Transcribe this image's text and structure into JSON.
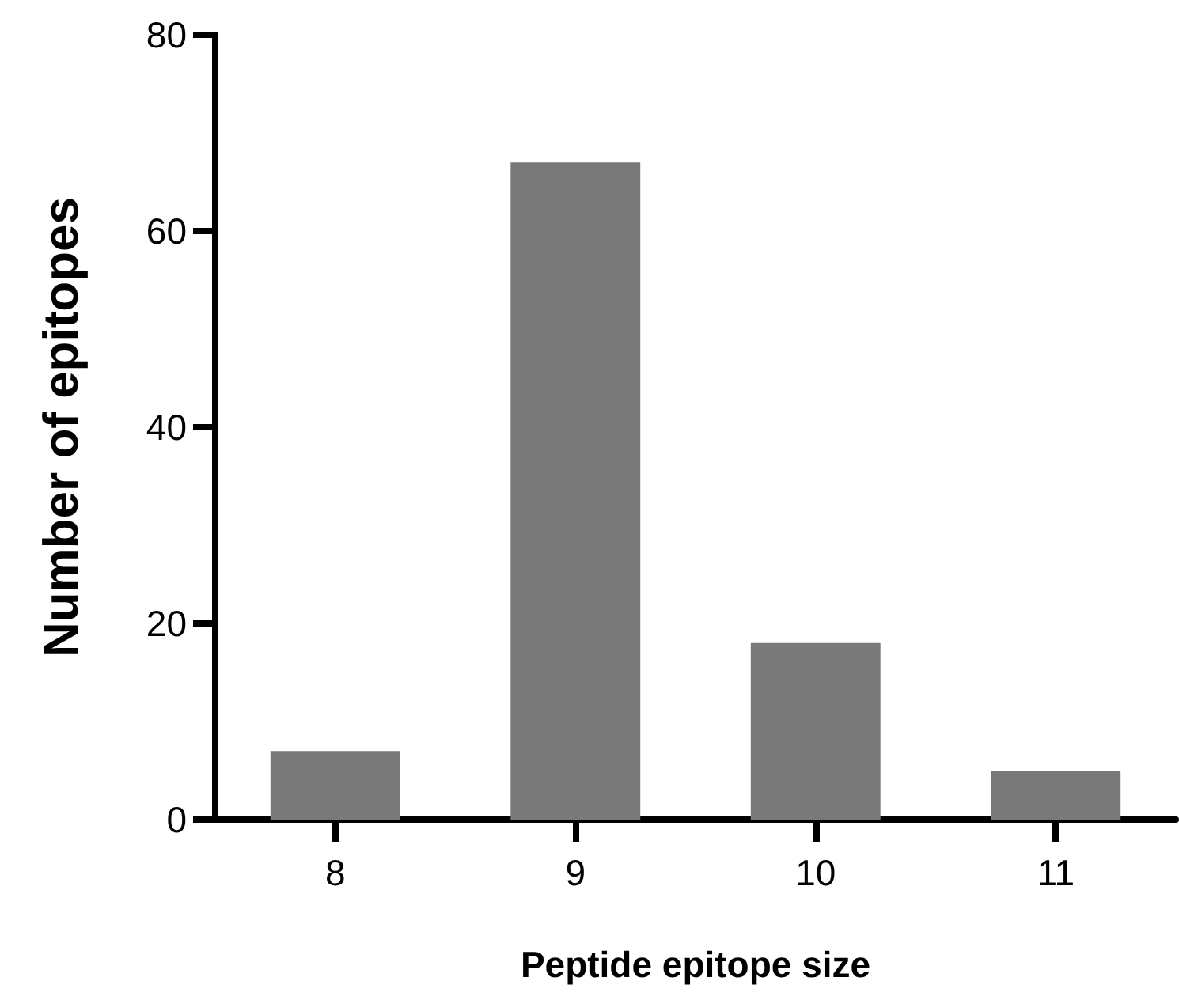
{
  "chart_data": {
    "type": "bar",
    "xlabel": "Peptide epitope size",
    "ylabel": "Number of epitopes",
    "categories": [
      "8",
      "9",
      "10",
      "11"
    ],
    "values": [
      7,
      67,
      18,
      5
    ],
    "color": "#797979",
    "ylim": [
      0,
      80
    ],
    "yticks": [
      0,
      20,
      40,
      60,
      80
    ],
    "grid": false
  }
}
